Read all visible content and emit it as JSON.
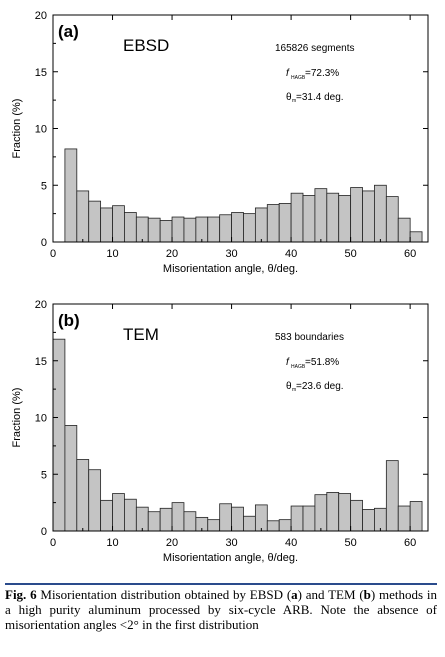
{
  "chart_data": [
    {
      "type": "bar",
      "panel_label": "(a)",
      "method": "EBSD",
      "annotations": {
        "count": "165826 segments",
        "f_prefix": "f",
        "f_sub": "HAGB",
        "f_value": "=72.3%",
        "theta_prefix": "θ",
        "theta_sub": "m",
        "theta_value": "=31.4 deg."
      },
      "xlabel": "Misorientation angle, θ/deg.",
      "ylabel": "Fraction (%)",
      "xlim": [
        0,
        63
      ],
      "ylim": [
        0,
        20
      ],
      "xticks": [
        "0",
        "10",
        "20",
        "30",
        "40",
        "50",
        "60"
      ],
      "yticks": [
        "0",
        "5",
        "10",
        "15",
        "20"
      ],
      "bin_width": 2,
      "bin_starts": [
        2,
        4,
        6,
        8,
        10,
        12,
        14,
        16,
        18,
        20,
        22,
        24,
        26,
        28,
        30,
        32,
        34,
        36,
        38,
        40,
        42,
        44,
        46,
        48,
        50,
        52,
        54,
        56,
        58,
        60
      ],
      "values": [
        8.2,
        4.5,
        3.6,
        3.0,
        3.2,
        2.6,
        2.2,
        2.1,
        1.9,
        2.2,
        2.1,
        2.2,
        2.2,
        2.4,
        2.6,
        2.5,
        3.0,
        3.3,
        3.4,
        4.3,
        4.1,
        4.7,
        4.3,
        4.1,
        4.8,
        4.5,
        5.0,
        4.0,
        2.1,
        0.9
      ]
    },
    {
      "type": "bar",
      "panel_label": "(b)",
      "method": "TEM",
      "annotations": {
        "count": "583 boundaries",
        "f_prefix": "f",
        "f_sub": "HAGB",
        "f_value": "=51.8%",
        "theta_prefix": "θ",
        "theta_sub": "m",
        "theta_value": "=23.6 deg."
      },
      "xlabel": "Misorientation angle, θ/deg.",
      "ylabel": "Fraction (%)",
      "xlim": [
        0,
        63
      ],
      "ylim": [
        0,
        20
      ],
      "xticks": [
        "0",
        "10",
        "20",
        "30",
        "40",
        "50",
        "60"
      ],
      "yticks": [
        "0",
        "5",
        "10",
        "15",
        "20"
      ],
      "bin_width": 2,
      "bin_starts": [
        0,
        2,
        4,
        6,
        8,
        10,
        12,
        14,
        16,
        18,
        20,
        22,
        24,
        26,
        28,
        30,
        32,
        34,
        36,
        38,
        40,
        42,
        44,
        46,
        48,
        50,
        52,
        54,
        56,
        58,
        60
      ],
      "values": [
        16.9,
        9.3,
        6.3,
        5.4,
        2.7,
        3.3,
        2.8,
        2.1,
        1.7,
        2.0,
        2.5,
        1.7,
        1.2,
        1.0,
        2.4,
        2.1,
        1.3,
        2.3,
        0.9,
        1.0,
        2.2,
        2.2,
        3.2,
        3.4,
        3.3,
        2.7,
        1.9,
        2.0,
        6.2,
        2.2,
        2.6
      ]
    }
  ],
  "caption": {
    "fig_label": "Fig. 6",
    "text_1": " Misorientation distribution obtained by EBSD (",
    "a": "a",
    "text_2": ") and TEM (",
    "b": "b",
    "text_3": ") methods in a high purity aluminum processed by six-cycle ARB. Note the absence of misorientation angles <2° in the first distribution"
  }
}
